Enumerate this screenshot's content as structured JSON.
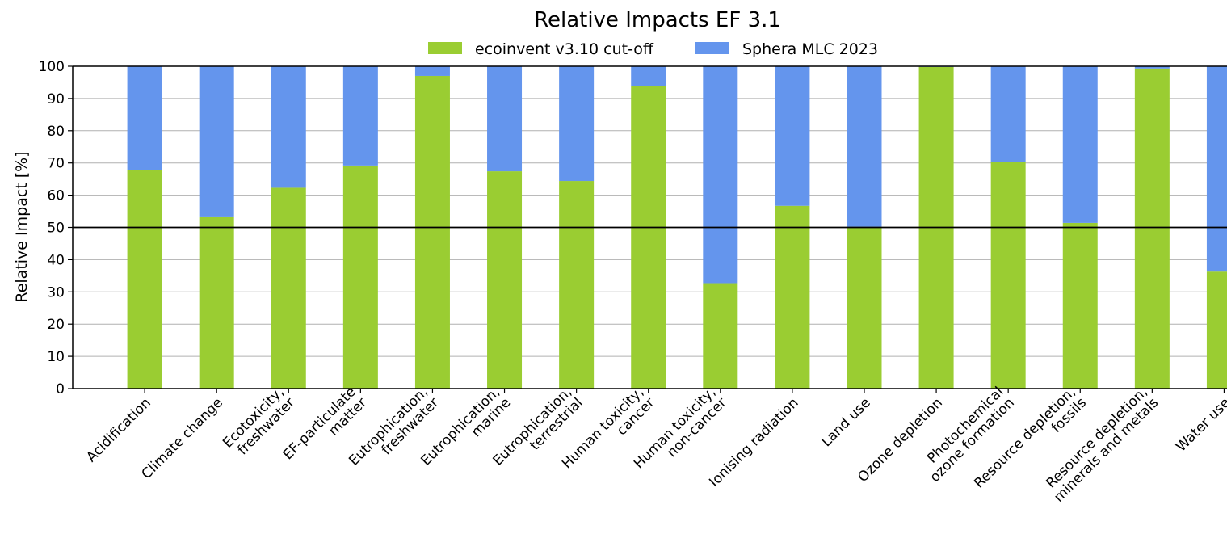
{
  "chart_data": {
    "type": "bar",
    "stacked": true,
    "title": "Relative Impacts EF 3.1",
    "ylabel": "Relative Impact [%]",
    "xlabel": "",
    "ylim": [
      0,
      100
    ],
    "yticks": [
      0,
      10,
      20,
      30,
      40,
      50,
      60,
      70,
      80,
      90,
      100
    ],
    "reference_line": 50,
    "grid": "horizontal",
    "legend_position": "top-center",
    "categories": [
      [
        "Acidification"
      ],
      [
        "Climate change"
      ],
      [
        "Ecotoxicity,",
        "freshwater"
      ],
      [
        "EF-particulate",
        "matter"
      ],
      [
        "Eutrophication,",
        "freshwater"
      ],
      [
        "Eutrophication,",
        "marine"
      ],
      [
        "Eutrophication,",
        "terrestrial"
      ],
      [
        "Human toxicity,",
        "cancer"
      ],
      [
        "Human toxicity,",
        "non-cancer"
      ],
      [
        "Ionising radiation"
      ],
      [
        "Land use"
      ],
      [
        "Ozone depletion"
      ],
      [
        "Photochemical",
        "ozone formation"
      ],
      [
        "Resource depletion,",
        "fossils"
      ],
      [
        "Resource depletion,",
        "minerals and metals"
      ],
      [
        "Water use"
      ]
    ],
    "series": [
      {
        "name": "ecoinvent v3.10 cut-off",
        "color": "#9acd32",
        "values": [
          67.7,
          53.4,
          62.3,
          69.2,
          97.0,
          67.4,
          64.4,
          93.8,
          32.7,
          56.7,
          50.2,
          99.8,
          70.4,
          51.4,
          99.3,
          36.3
        ]
      },
      {
        "name": "Sphera MLC 2023",
        "color": "#6495ed",
        "values": [
          32.3,
          46.6,
          37.7,
          30.8,
          3.0,
          32.6,
          35.6,
          6.2,
          67.3,
          43.3,
          49.8,
          0.2,
          29.6,
          48.6,
          0.7,
          63.7
        ]
      }
    ]
  }
}
